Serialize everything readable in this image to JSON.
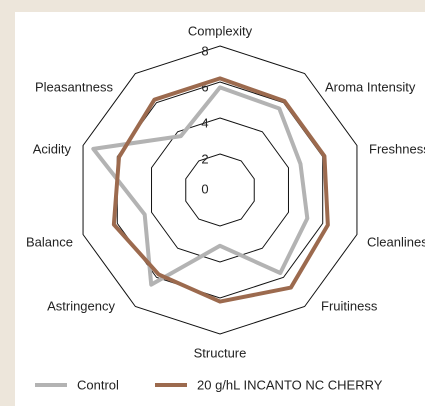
{
  "chart_data": {
    "type": "radar",
    "categories": [
      "Complexity",
      "Aroma Intensity",
      "Freshness",
      "Cleanliness",
      "Fruitiness",
      "Structure",
      "Astringency",
      "Balance",
      "Acidity",
      "Pleasantness"
    ],
    "series": [
      {
        "name": "Control",
        "color": "#b3b3b3",
        "values": [
          5.7,
          5.6,
          4.7,
          5.1,
          5.7,
          3.1,
          6.5,
          4.4,
          7.4,
          3.7
        ]
      },
      {
        "name": "20 g/hL INCANTO NC CHERRY",
        "color": "#9c6a4e",
        "values": [
          6.2,
          6.1,
          6.1,
          6.3,
          6.7,
          6.2,
          5.8,
          6.2,
          5.9,
          6.2
        ]
      }
    ],
    "rlim": [
      0,
      8
    ],
    "rticks": [
      0,
      2,
      4,
      6,
      8
    ],
    "legend": "bottom"
  }
}
